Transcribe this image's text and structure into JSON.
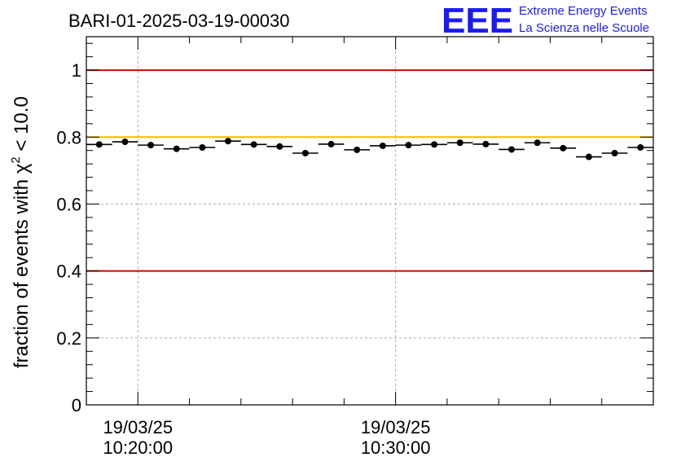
{
  "chart_data": {
    "type": "scatter",
    "title": "BARI-01-2025-03-19-00030",
    "xlabel": "",
    "ylabel_prefix": "fraction of events with ",
    "ylabel_symbol": "χ",
    "ylabel_exponent": "2",
    "ylabel_suffix": " < 10.0",
    "ylim": [
      0,
      1.1
    ],
    "yticks": [
      0,
      0.2,
      0.4,
      0.6,
      0.8,
      1
    ],
    "ytick_labels": [
      "0",
      "0.2",
      "0.4",
      "0.6",
      "0.8",
      "1"
    ],
    "xlim_minutes": [
      18,
      40
    ],
    "xtick_major_minutes": [
      20,
      30
    ],
    "xtick_labels": [
      {
        "date": "19/03/25",
        "time": "10:20:00"
      },
      {
        "date": "19/03/25",
        "time": "10:30:00"
      }
    ],
    "bin_width_minutes": 1,
    "series": [
      {
        "name": "fraction",
        "x_minutes": [
          18.5,
          19.5,
          20.5,
          21.5,
          22.5,
          23.5,
          24.5,
          25.5,
          26.5,
          27.5,
          28.5,
          29.5,
          30.5,
          31.5,
          32.5,
          33.5,
          34.5,
          35.5,
          36.5,
          37.5,
          38.5,
          39.5
        ],
        "values": [
          0.778,
          0.786,
          0.776,
          0.765,
          0.769,
          0.788,
          0.778,
          0.772,
          0.752,
          0.779,
          0.762,
          0.774,
          0.776,
          0.778,
          0.783,
          0.779,
          0.763,
          0.783,
          0.767,
          0.741,
          0.752,
          0.769
        ]
      }
    ],
    "reference_lines": [
      {
        "name": "upper-limit",
        "y": 1.0,
        "color": "#e00000"
      },
      {
        "name": "warning-level",
        "y": 0.8,
        "color": "#ffbb00"
      },
      {
        "name": "lower-limit",
        "y": 0.4,
        "color": "#e00000"
      }
    ],
    "grid": true
  },
  "logo": {
    "mark": "EEE",
    "line1": "Extreme Energy Events",
    "line2": "La Scienza nelle Scuole"
  }
}
